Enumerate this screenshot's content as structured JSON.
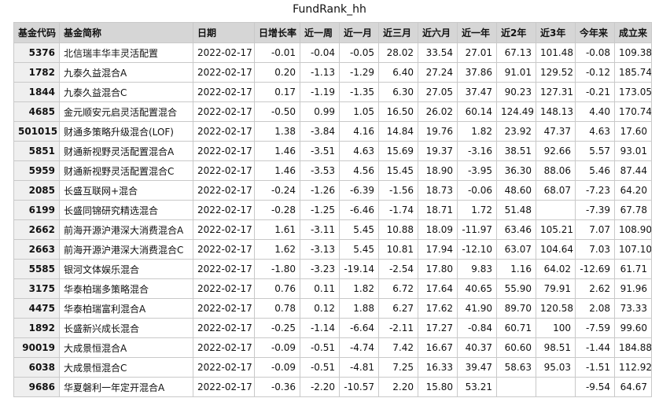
{
  "title": "FundRank_hh",
  "columns": [
    "基金代码",
    "基金简称",
    "日期",
    "日增长率",
    "近一周",
    "近一月",
    "近三月",
    "近六月",
    "近一年",
    "近2年",
    "近3年",
    "今年来",
    "成立来"
  ],
  "rows": [
    [
      "5376",
      "北信瑞丰华丰灵活配置",
      "2022-02-17",
      "-0.01",
      "-0.04",
      "-0.05",
      "28.02",
      "33.54",
      "27.01",
      "67.13",
      "101.48",
      "-0.08",
      "109.38"
    ],
    [
      "1782",
      "九泰久益混合A",
      "2022-02-17",
      "0.20",
      "-1.13",
      "-1.29",
      "6.40",
      "27.24",
      "37.86",
      "91.01",
      "129.52",
      "-0.12",
      "185.74"
    ],
    [
      "1844",
      "九泰久益混合C",
      "2022-02-17",
      "0.17",
      "-1.19",
      "-1.35",
      "6.30",
      "27.05",
      "37.47",
      "90.23",
      "127.31",
      "-0.21",
      "173.05"
    ],
    [
      "4685",
      "金元顺安元启灵活配置混合",
      "2022-02-17",
      "-0.50",
      "0.99",
      "1.05",
      "16.50",
      "26.02",
      "60.14",
      "124.49",
      "148.13",
      "4.40",
      "170.74"
    ],
    [
      "501015",
      "财通多策略升级混合(LOF)",
      "2022-02-17",
      "1.38",
      "-3.84",
      "4.16",
      "14.84",
      "19.76",
      "1.82",
      "23.92",
      "47.37",
      "4.63",
      "17.60"
    ],
    [
      "5851",
      "财通新视野灵活配置混合A",
      "2022-02-17",
      "1.46",
      "-3.51",
      "4.63",
      "15.69",
      "19.37",
      "-3.16",
      "38.51",
      "92.66",
      "5.57",
      "93.01"
    ],
    [
      "5959",
      "财通新视野灵活配置混合C",
      "2022-02-17",
      "1.46",
      "-3.53",
      "4.56",
      "15.45",
      "18.90",
      "-3.95",
      "36.30",
      "88.06",
      "5.46",
      "87.44"
    ],
    [
      "2085",
      "长盛互联网+混合",
      "2022-02-17",
      "-0.24",
      "-1.26",
      "-6.39",
      "-1.56",
      "18.73",
      "-0.06",
      "48.60",
      "68.07",
      "-7.23",
      "64.20"
    ],
    [
      "6199",
      "长盛同锦研究精选混合",
      "2022-02-17",
      "-0.28",
      "-1.25",
      "-6.46",
      "-1.74",
      "18.71",
      "1.72",
      "51.48",
      "",
      "-7.39",
      "67.78"
    ],
    [
      "2662",
      "前海开源沪港深大消费混合A",
      "2022-02-17",
      "1.61",
      "-3.11",
      "5.45",
      "10.88",
      "18.09",
      "-11.97",
      "63.46",
      "105.21",
      "7.07",
      "108.90"
    ],
    [
      "2663",
      "前海开源沪港深大消费混合C",
      "2022-02-17",
      "1.62",
      "-3.13",
      "5.45",
      "10.81",
      "17.94",
      "-12.10",
      "63.07",
      "104.64",
      "7.03",
      "107.10"
    ],
    [
      "5585",
      "银河文体娱乐混合",
      "2022-02-17",
      "-1.80",
      "-3.23",
      "-19.14",
      "-2.54",
      "17.80",
      "9.83",
      "1.16",
      "64.02",
      "-12.69",
      "61.71"
    ],
    [
      "3175",
      "华泰柏瑞多策略混合",
      "2022-02-17",
      "0.76",
      "0.11",
      "1.82",
      "6.72",
      "17.64",
      "40.65",
      "55.90",
      "79.91",
      "2.62",
      "91.96"
    ],
    [
      "4475",
      "华泰柏瑞富利混合A",
      "2022-02-17",
      "0.78",
      "0.12",
      "1.88",
      "6.27",
      "17.62",
      "41.90",
      "89.70",
      "120.58",
      "2.08",
      "73.33"
    ],
    [
      "1892",
      "长盛新兴成长混合",
      "2022-02-17",
      "-0.25",
      "-1.14",
      "-6.64",
      "-2.11",
      "17.27",
      "-0.84",
      "60.71",
      "100",
      "-7.59",
      "99.60"
    ],
    [
      "90019",
      "大成景恒混合A",
      "2022-02-17",
      "-0.09",
      "-0.51",
      "-4.74",
      "7.42",
      "16.67",
      "40.37",
      "60.60",
      "98.51",
      "-1.44",
      "184.88"
    ],
    [
      "6038",
      "大成景恒混合C",
      "2022-02-17",
      "-0.09",
      "-0.51",
      "-4.81",
      "7.25",
      "16.33",
      "39.47",
      "58.63",
      "95.03",
      "-1.51",
      "112.92"
    ],
    [
      "9686",
      "华夏磐利一年定开混合A",
      "2022-02-17",
      "-0.36",
      "-2.20",
      "-10.57",
      "2.20",
      "15.80",
      "53.21",
      "",
      "",
      "-9.54",
      "64.67"
    ]
  ]
}
